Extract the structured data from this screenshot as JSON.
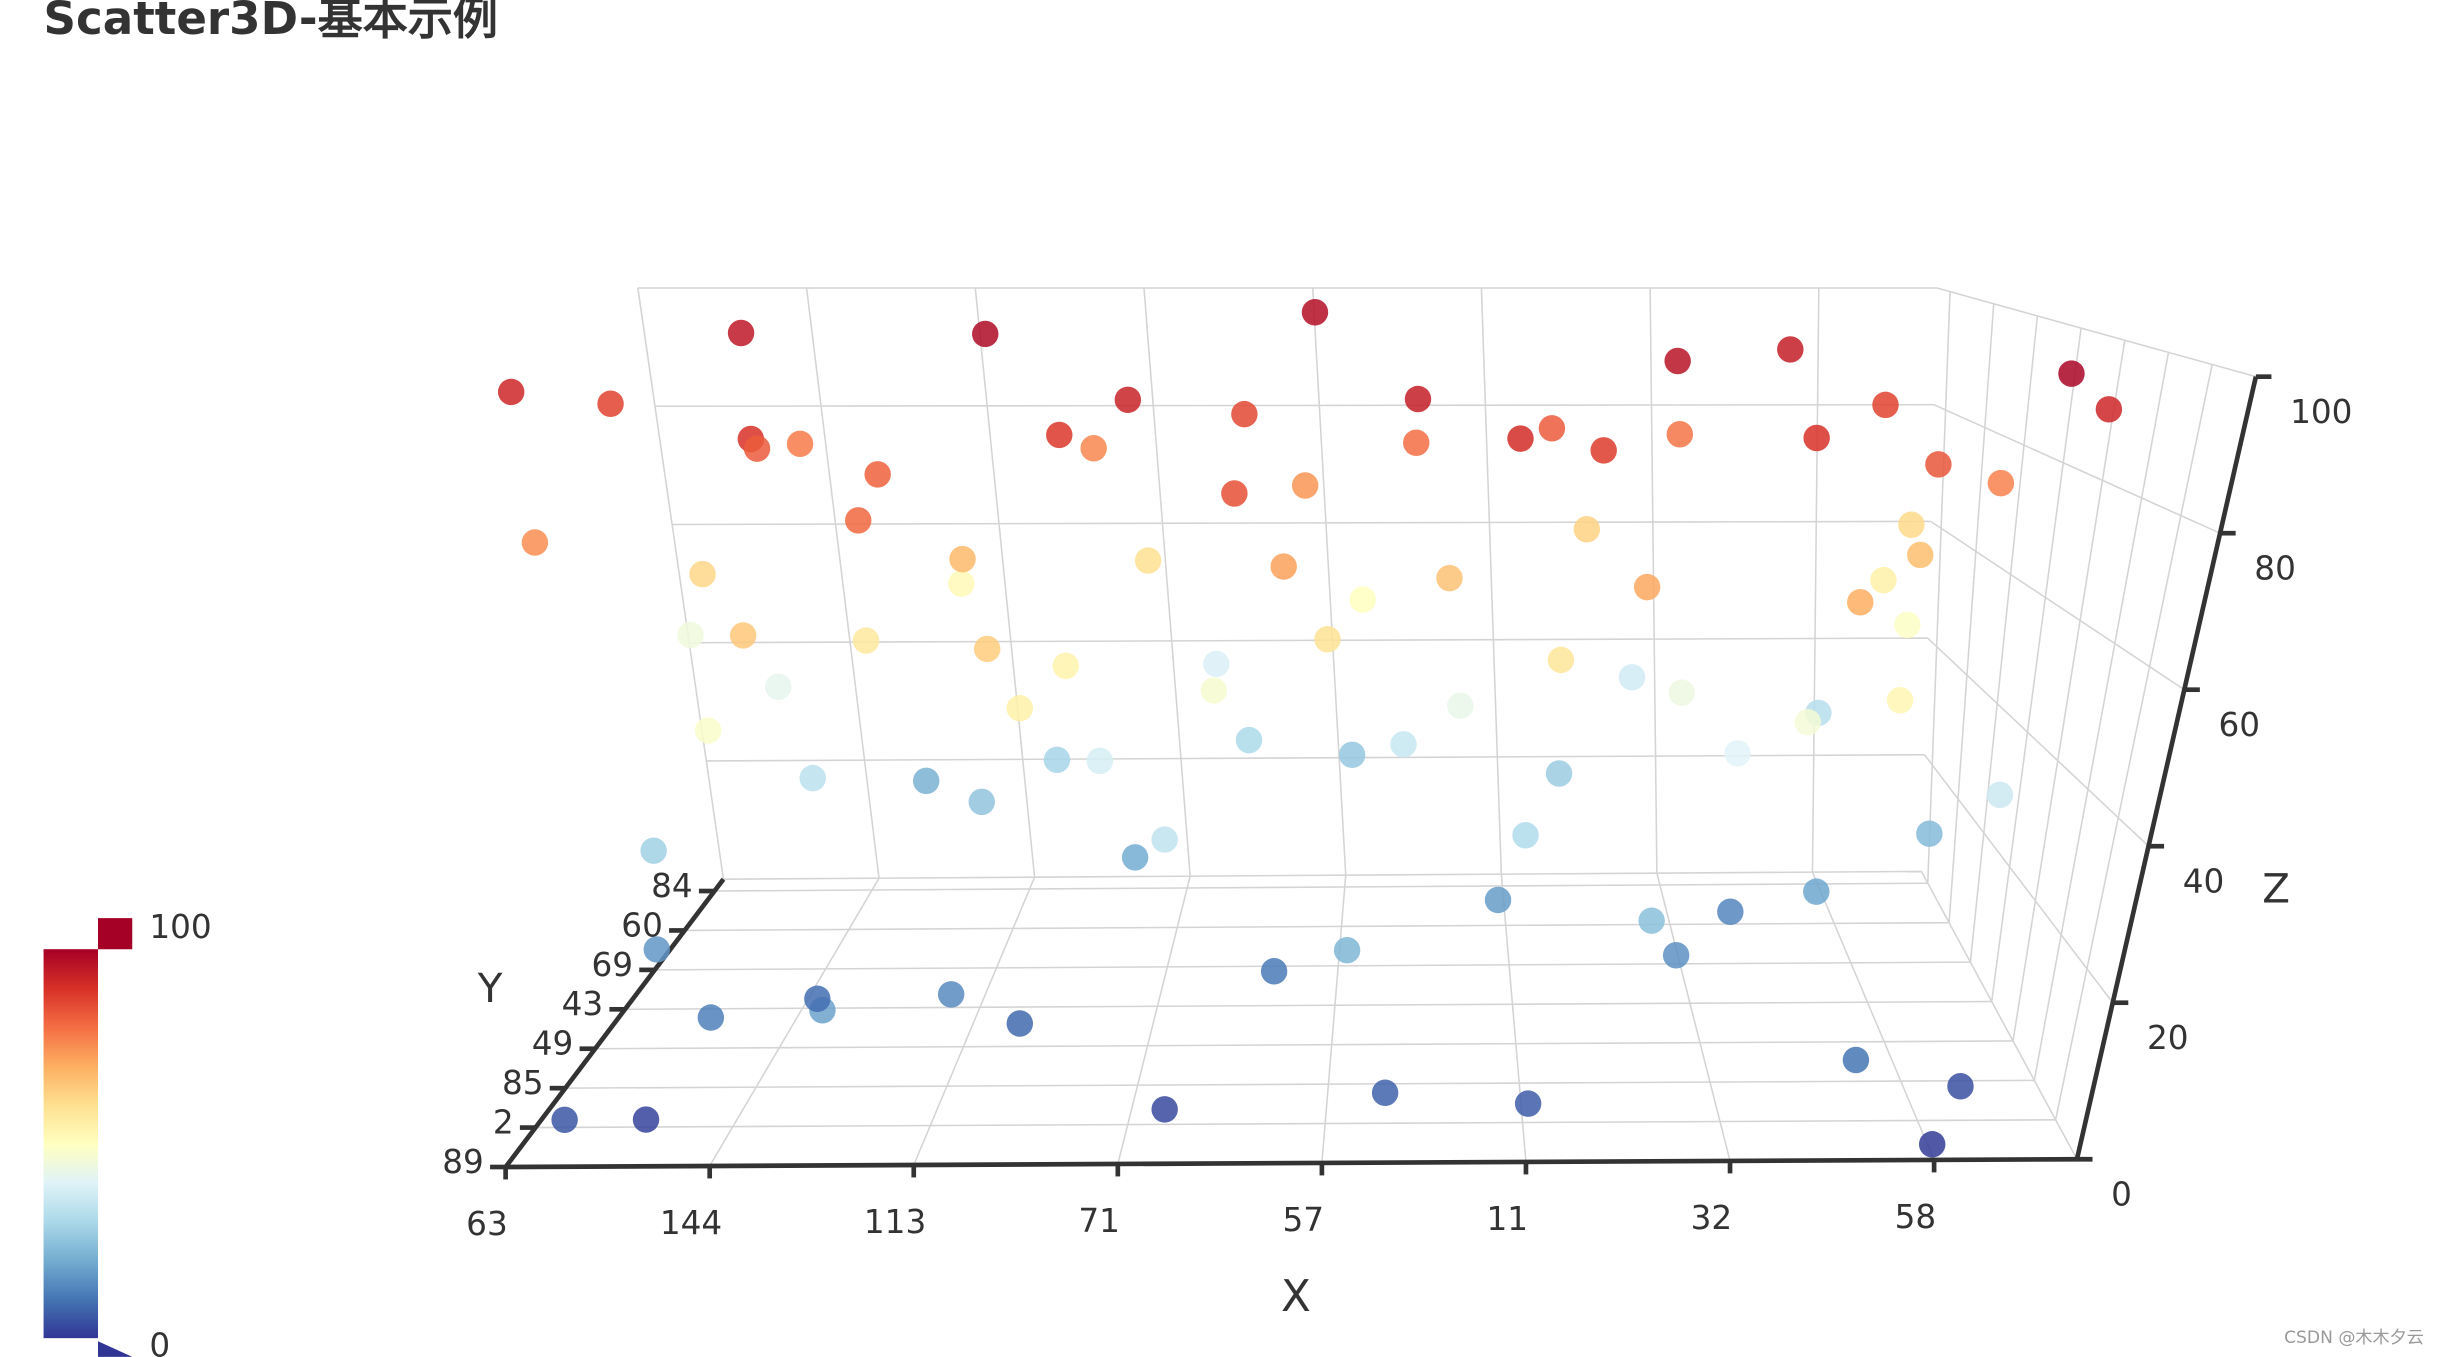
{
  "chart_data": {
    "type": "scatter3d",
    "title": "Scatter3D-基本示例",
    "x_name": "X",
    "y_name": "Y",
    "z_name": "Z",
    "x_categories": [
      "63",
      "144",
      "113",
      "71",
      "57",
      "11",
      "32",
      "58"
    ],
    "y_categories": [
      "89",
      "2",
      "85",
      "49",
      "43",
      "69",
      "60",
      "84"
    ],
    "zlim": [
      0,
      100
    ],
    "zticks": [
      0,
      20,
      40,
      60,
      80,
      100
    ],
    "grid": true,
    "visual_map": {
      "min": 0,
      "max": 100,
      "colors": [
        "#313695",
        "#4575b4",
        "#74add1",
        "#abd9e9",
        "#e0f3f8",
        "#ffffbf",
        "#fee090",
        "#fdae61",
        "#f46d43",
        "#d73027",
        "#a50026"
      ]
    },
    "points": [
      [
        0.3,
        0.2,
        5
      ],
      [
        0.9,
        1.5,
        12
      ],
      [
        1.6,
        0.4,
        18
      ],
      [
        2.4,
        2.1,
        8
      ],
      [
        3.2,
        0.8,
        3
      ],
      [
        4.1,
        1.2,
        22
      ],
      [
        5.0,
        0.3,
        6
      ],
      [
        5.8,
        2.5,
        15
      ],
      [
        6.6,
        0.6,
        10
      ],
      [
        7.2,
        1.1,
        4
      ],
      [
        0.5,
        3.0,
        28
      ],
      [
        1.2,
        4.2,
        33
      ],
      [
        2.0,
        5.1,
        25
      ],
      [
        2.8,
        3.6,
        38
      ],
      [
        3.5,
        6.0,
        30
      ],
      [
        4.4,
        4.8,
        35
      ],
      [
        5.3,
        5.5,
        27
      ],
      [
        6.1,
        3.3,
        40
      ],
      [
        6.9,
        6.4,
        32
      ],
      [
        7.4,
        2.8,
        36
      ],
      [
        0.2,
        6.5,
        45
      ],
      [
        1.0,
        2.2,
        48
      ],
      [
        1.8,
        6.8,
        52
      ],
      [
        2.6,
        1.0,
        55
      ],
      [
        3.4,
        3.9,
        47
      ],
      [
        4.2,
        6.6,
        50
      ],
      [
        5.1,
        2.0,
        58
      ],
      [
        5.9,
        4.5,
        44
      ],
      [
        6.7,
        1.8,
        53
      ],
      [
        7.3,
        5.8,
        49
      ],
      [
        0.7,
        4.6,
        62
      ],
      [
        1.4,
        0.9,
        65
      ],
      [
        2.2,
        3.4,
        68
      ],
      [
        3.0,
        5.7,
        60
      ],
      [
        3.8,
        1.6,
        72
      ],
      [
        4.6,
        3.1,
        66
      ],
      [
        5.5,
        6.2,
        63
      ],
      [
        6.3,
        0.5,
        70
      ],
      [
        7.0,
        3.8,
        67
      ],
      [
        7.5,
        6.9,
        61
      ],
      [
        0.4,
        1.8,
        75
      ],
      [
        1.1,
        5.9,
        78
      ],
      [
        1.9,
        2.7,
        82
      ],
      [
        2.7,
        6.3,
        76
      ],
      [
        3.6,
        0.2,
        85
      ],
      [
        4.5,
        5.2,
        80
      ],
      [
        5.2,
        1.4,
        88
      ],
      [
        6.0,
        6.0,
        79
      ],
      [
        6.8,
        2.3,
        84
      ],
      [
        7.4,
        4.0,
        77
      ],
      [
        0.1,
        3.5,
        92
      ],
      [
        0.8,
        6.2,
        95
      ],
      [
        1.5,
        1.3,
        90
      ],
      [
        2.3,
        4.7,
        98
      ],
      [
        3.1,
        2.4,
        93
      ],
      [
        4.0,
        6.8,
        97
      ],
      [
        4.8,
        0.7,
        91
      ],
      [
        5.7,
        3.6,
        96
      ],
      [
        6.5,
        5.4,
        94
      ],
      [
        7.1,
        0.9,
        99
      ],
      [
        0.6,
        0.8,
        2
      ],
      [
        1.3,
        2.6,
        9
      ],
      [
        2.1,
        1.7,
        14
      ],
      [
        2.9,
        4.4,
        20
      ],
      [
        3.7,
        2.9,
        11
      ],
      [
        4.3,
        0.4,
        7
      ],
      [
        4.9,
        3.7,
        17
      ],
      [
        5.6,
        1.6,
        24
      ],
      [
        6.2,
        4.1,
        13
      ],
      [
        7.0,
        0.2,
        1
      ],
      [
        0.9,
        5.3,
        42
      ],
      [
        1.7,
        3.2,
        57
      ],
      [
        2.5,
        0.6,
        64
      ],
      [
        3.3,
        6.7,
        39
      ],
      [
        4.0,
        2.6,
        59
      ],
      [
        4.7,
        4.3,
        43
      ],
      [
        5.4,
        0.9,
        71
      ],
      [
        6.4,
        2.9,
        46
      ],
      [
        7.2,
        6.1,
        55
      ],
      [
        3.9,
        5.0,
        74
      ],
      [
        0.3,
        4.9,
        87
      ],
      [
        1.2,
        3.8,
        83
      ],
      [
        2.0,
        0.5,
        81
      ],
      [
        2.8,
        2.0,
        89
      ],
      [
        3.6,
        4.6,
        86
      ],
      [
        4.4,
        1.9,
        94
      ],
      [
        5.2,
        4.9,
        83
      ],
      [
        6.1,
        1.2,
        90
      ],
      [
        6.9,
        4.7,
        87
      ],
      [
        7.5,
        2.1,
        92
      ],
      [
        0.5,
        2.6,
        16
      ],
      [
        1.5,
        6.5,
        21
      ],
      [
        2.4,
        5.6,
        29
      ],
      [
        3.2,
        1.9,
        34
      ],
      [
        4.1,
        6.3,
        26
      ],
      [
        5.0,
        2.7,
        31
      ],
      [
        5.8,
        6.6,
        37
      ],
      [
        6.6,
        3.5,
        19
      ],
      [
        7.3,
        4.4,
        23
      ],
      [
        2.7,
        3.0,
        54
      ]
    ],
    "watermark": "CSDN @木木夕云"
  }
}
